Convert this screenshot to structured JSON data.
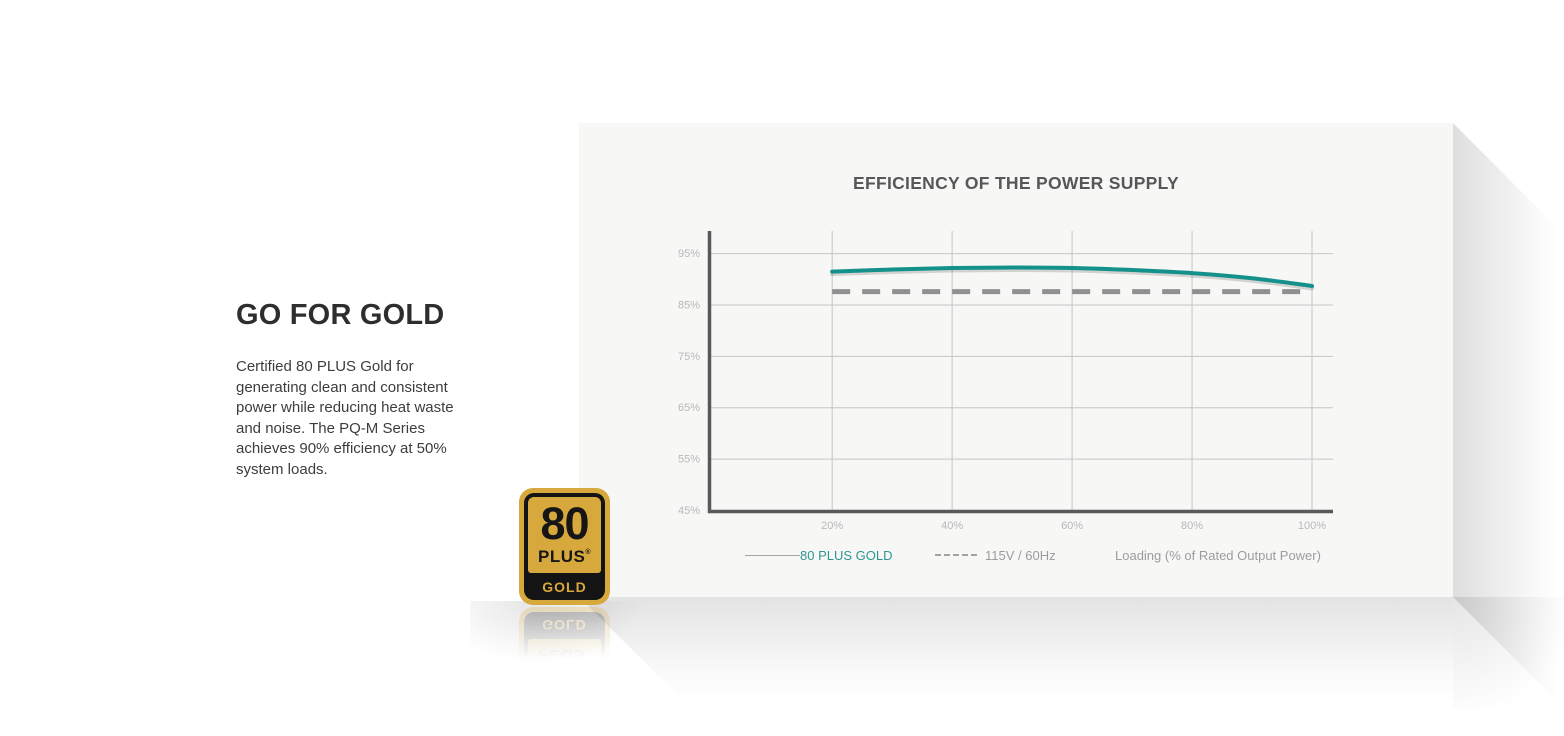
{
  "intro": {
    "heading": "GO FOR GOLD",
    "body": "Certified 80 PLUS Gold for generating clean and consistent power while reducing heat waste and noise. The PQ-M Series achieves 90% efficiency at 50% system loads."
  },
  "badge": {
    "number": "80",
    "plus": "PLUS",
    "reg_mark": "®",
    "tier": "GOLD",
    "gold_color": "#d7a83c",
    "black_color": "#141414"
  },
  "chart_data": {
    "type": "line",
    "title": "EFFICIENCY OF THE POWER SUPPLY",
    "xlabel": "Loading (% of Rated Output Power)",
    "ylabel": "",
    "x_ticks": [
      "20%",
      "40%",
      "60%",
      "80%",
      "100%"
    ],
    "x_tick_values": [
      20,
      40,
      60,
      80,
      100
    ],
    "y_ticks": [
      "95%",
      "85%",
      "75%",
      "65%",
      "55%",
      "45%"
    ],
    "y_tick_values": [
      95,
      85,
      75,
      65,
      55,
      45
    ],
    "xlim": [
      -0.7,
      103.5
    ],
    "ylim": [
      44.5,
      99.4
    ],
    "grid": true,
    "legend_position": "bottom",
    "series": [
      {
        "name": "80 PLUS GOLD",
        "style": "solid",
        "color": "#15918c",
        "x": [
          20,
          30,
          40,
          50,
          60,
          70,
          80,
          90,
          100
        ],
        "y": [
          91.5,
          91.9,
          92.2,
          92.3,
          92.2,
          91.8,
          91.2,
          90.2,
          88.7
        ]
      },
      {
        "name": "115V / 60Hz",
        "style": "dashed",
        "color": "#8f9091",
        "x": [
          20,
          100
        ],
        "y": [
          87.6,
          87.6
        ]
      }
    ],
    "colors": {
      "axis": "#58595b",
      "grid": "#c6c6c6",
      "tick_label": "#b7b8ba",
      "title": "#57575a",
      "legend_text": "#9b9c9e",
      "legend_gold_text": "#2d9693"
    }
  }
}
